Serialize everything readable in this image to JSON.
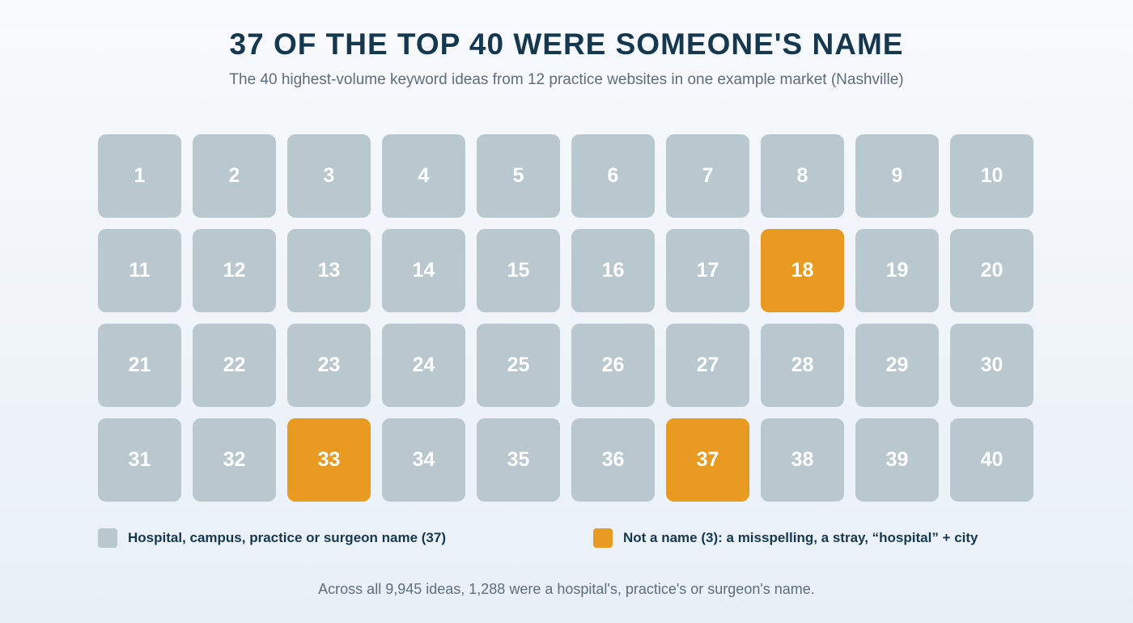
{
  "title": "37 OF THE TOP 40 WERE SOMEONE'S NAME",
  "subtitle": "The 40 highest-volume keyword ideas from 12 practice websites in one example market (Nashville)",
  "colors": {
    "name": "#b9c7ce",
    "not_name": "#e89b20",
    "text_dark": "#16384f",
    "text_muted": "#5e6e79"
  },
  "chart_data": {
    "type": "waffle",
    "rows": 4,
    "columns": 10,
    "cells": [
      {
        "label": "1",
        "category": "name"
      },
      {
        "label": "2",
        "category": "name"
      },
      {
        "label": "3",
        "category": "name"
      },
      {
        "label": "4",
        "category": "name"
      },
      {
        "label": "5",
        "category": "name"
      },
      {
        "label": "6",
        "category": "name"
      },
      {
        "label": "7",
        "category": "name"
      },
      {
        "label": "8",
        "category": "name"
      },
      {
        "label": "9",
        "category": "name"
      },
      {
        "label": "10",
        "category": "name"
      },
      {
        "label": "11",
        "category": "name"
      },
      {
        "label": "12",
        "category": "name"
      },
      {
        "label": "13",
        "category": "name"
      },
      {
        "label": "14",
        "category": "name"
      },
      {
        "label": "15",
        "category": "name"
      },
      {
        "label": "16",
        "category": "name"
      },
      {
        "label": "17",
        "category": "name"
      },
      {
        "label": "18",
        "category": "not_name"
      },
      {
        "label": "19",
        "category": "name"
      },
      {
        "label": "20",
        "category": "name"
      },
      {
        "label": "21",
        "category": "name"
      },
      {
        "label": "22",
        "category": "name"
      },
      {
        "label": "23",
        "category": "name"
      },
      {
        "label": "24",
        "category": "name"
      },
      {
        "label": "25",
        "category": "name"
      },
      {
        "label": "26",
        "category": "name"
      },
      {
        "label": "27",
        "category": "name"
      },
      {
        "label": "28",
        "category": "name"
      },
      {
        "label": "29",
        "category": "name"
      },
      {
        "label": "30",
        "category": "name"
      },
      {
        "label": "31",
        "category": "name"
      },
      {
        "label": "32",
        "category": "name"
      },
      {
        "label": "33",
        "category": "not_name"
      },
      {
        "label": "34",
        "category": "name"
      },
      {
        "label": "35",
        "category": "name"
      },
      {
        "label": "36",
        "category": "name"
      },
      {
        "label": "37",
        "category": "not_name"
      },
      {
        "label": "38",
        "category": "name"
      },
      {
        "label": "39",
        "category": "name"
      },
      {
        "label": "40",
        "category": "name"
      }
    ],
    "legend": [
      {
        "category": "name",
        "label": "Hospital, campus, practice or surgeon name (37)",
        "color": "#b9c7ce"
      },
      {
        "category": "not_name",
        "label": "Not a name (3): a misspelling, a stray, “hospital” + city",
        "color": "#e89b20"
      }
    ]
  },
  "footnote": "Across all 9,945 ideas, 1,288 were a hospital's, practice's or surgeon's name."
}
